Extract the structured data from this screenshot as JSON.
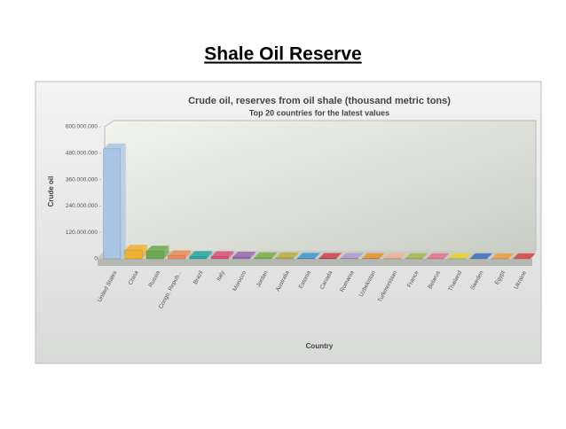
{
  "header": {
    "title": "Shale Oil Reserve"
  },
  "chart_data": {
    "type": "bar",
    "title": "Crude oil, reserves from oil shale (thousand metric tons)",
    "subtitle": "Top 20 countries for the latest values",
    "y_label": "Crude oil",
    "x_label": "Country",
    "categories": [
      "United States",
      "China",
      "Russia",
      "Congo, Repub...",
      "Brazil",
      "Italy",
      "Morocco",
      "Jordan",
      "Australia",
      "Estonia",
      "Canada",
      "Romania",
      "Uzbekistan",
      "Turkmenistan",
      "France",
      "Belarus",
      "Thailand",
      "Sweden",
      "Egypt",
      "Ukraine"
    ],
    "values": [
      500000000,
      40000000,
      35000000,
      14000000,
      11000000,
      10000000,
      8000000,
      5000000,
      4500000,
      2500000,
      2200000,
      2000000,
      1500000,
      1200000,
      1000000,
      1000000,
      900000,
      900000,
      600000,
      600000
    ],
    "colors": [
      "#a9c4e4",
      "#f0b030",
      "#6aa84f",
      "#f08a5a",
      "#2aa8a8",
      "#e0507a",
      "#9a6ab0",
      "#7ab04a",
      "#b8b040",
      "#3a98d8",
      "#d04050",
      "#b09ad8",
      "#e8902a",
      "#f0b090",
      "#a8b848",
      "#e87090",
      "#e8d030",
      "#3a70c0",
      "#f09a40",
      "#d84040"
    ],
    "ylim": [
      0,
      600000000
    ],
    "yticks": [
      0,
      {
        "value": 120000000,
        "label": "120.000.000"
      },
      {
        "value": 240000000,
        "label": "240.000.000"
      },
      {
        "value": 360000000,
        "label": "360.000.000"
      },
      {
        "value": 480000000,
        "label": "480.000.000"
      },
      {
        "value": 600000000,
        "label": "600.000.000"
      }
    ],
    "grid": false
  }
}
